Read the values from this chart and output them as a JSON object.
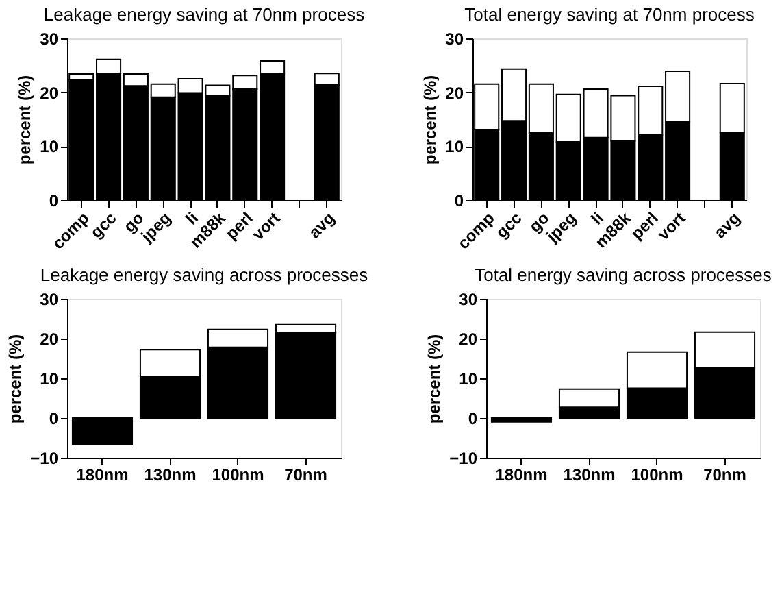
{
  "chart_data": [
    {
      "type": "bar",
      "stacked": true,
      "title": "Leakage energy saving at 70nm process",
      "ylabel": "percent (%)",
      "categories": [
        "comp",
        "gcc",
        "go",
        "jpeg",
        "li",
        "m88k",
        "perl",
        "vort",
        null,
        "avg"
      ],
      "ylim": [
        0,
        30
      ],
      "yticks": [
        0,
        10,
        20,
        30
      ],
      "grid": false,
      "legend": false,
      "series": [
        {
          "color": "#000000",
          "values": [
            22.3,
            23.5,
            21.2,
            19.1,
            19.9,
            19.4,
            20.6,
            23.5,
            null,
            21.4
          ]
        },
        {
          "color": "#ffffff",
          "values": [
            1.1,
            2.6,
            2.2,
            2.4,
            2.6,
            1.9,
            2.5,
            2.3,
            null,
            2.1
          ]
        }
      ]
    },
    {
      "type": "bar",
      "stacked": true,
      "title": "Total energy saving at 70nm process",
      "ylabel": "percent (%)",
      "categories": [
        "comp",
        "gcc",
        "go",
        "jpeg",
        "li",
        "m88k",
        "perl",
        "vort",
        null,
        "avg"
      ],
      "ylim": [
        0,
        30
      ],
      "yticks": [
        0,
        10,
        20,
        30
      ],
      "grid": false,
      "legend": false,
      "series": [
        {
          "color": "#000000",
          "values": [
            13.1,
            14.7,
            12.5,
            10.8,
            11.6,
            11.0,
            12.1,
            14.6,
            null,
            12.6
          ]
        },
        {
          "color": "#ffffff",
          "values": [
            8.4,
            9.6,
            9.0,
            8.8,
            9.0,
            8.4,
            9.0,
            9.3,
            null,
            9.0
          ]
        }
      ]
    },
    {
      "type": "bar",
      "stacked": true,
      "title": "Leakage energy saving across processes",
      "ylabel": "percent (%)",
      "categories": [
        "180nm",
        "130nm",
        "100nm",
        "70nm"
      ],
      "ylim": [
        -10,
        30
      ],
      "yticks": [
        -10,
        0,
        10,
        20,
        30
      ],
      "grid": false,
      "legend": false,
      "series": [
        {
          "color": "#000000",
          "values": [
            -6.6,
            10.5,
            17.8,
            21.4
          ]
        },
        {
          "color": "#ffffff",
          "values": [
            null,
            6.7,
            4.5,
            2.1
          ]
        }
      ]
    },
    {
      "type": "bar",
      "stacked": true,
      "title": "Total energy saving across processes",
      "ylabel": "percent (%)",
      "categories": [
        "180nm",
        "130nm",
        "100nm",
        "70nm"
      ],
      "ylim": [
        -10,
        30
      ],
      "yticks": [
        -10,
        0,
        10,
        20,
        30
      ],
      "grid": false,
      "legend": false,
      "series": [
        {
          "color": "#000000",
          "values": [
            -1.0,
            2.7,
            7.5,
            12.6
          ]
        },
        {
          "color": "#ffffff",
          "values": [
            null,
            4.6,
            9.1,
            9.0
          ]
        }
      ]
    }
  ]
}
